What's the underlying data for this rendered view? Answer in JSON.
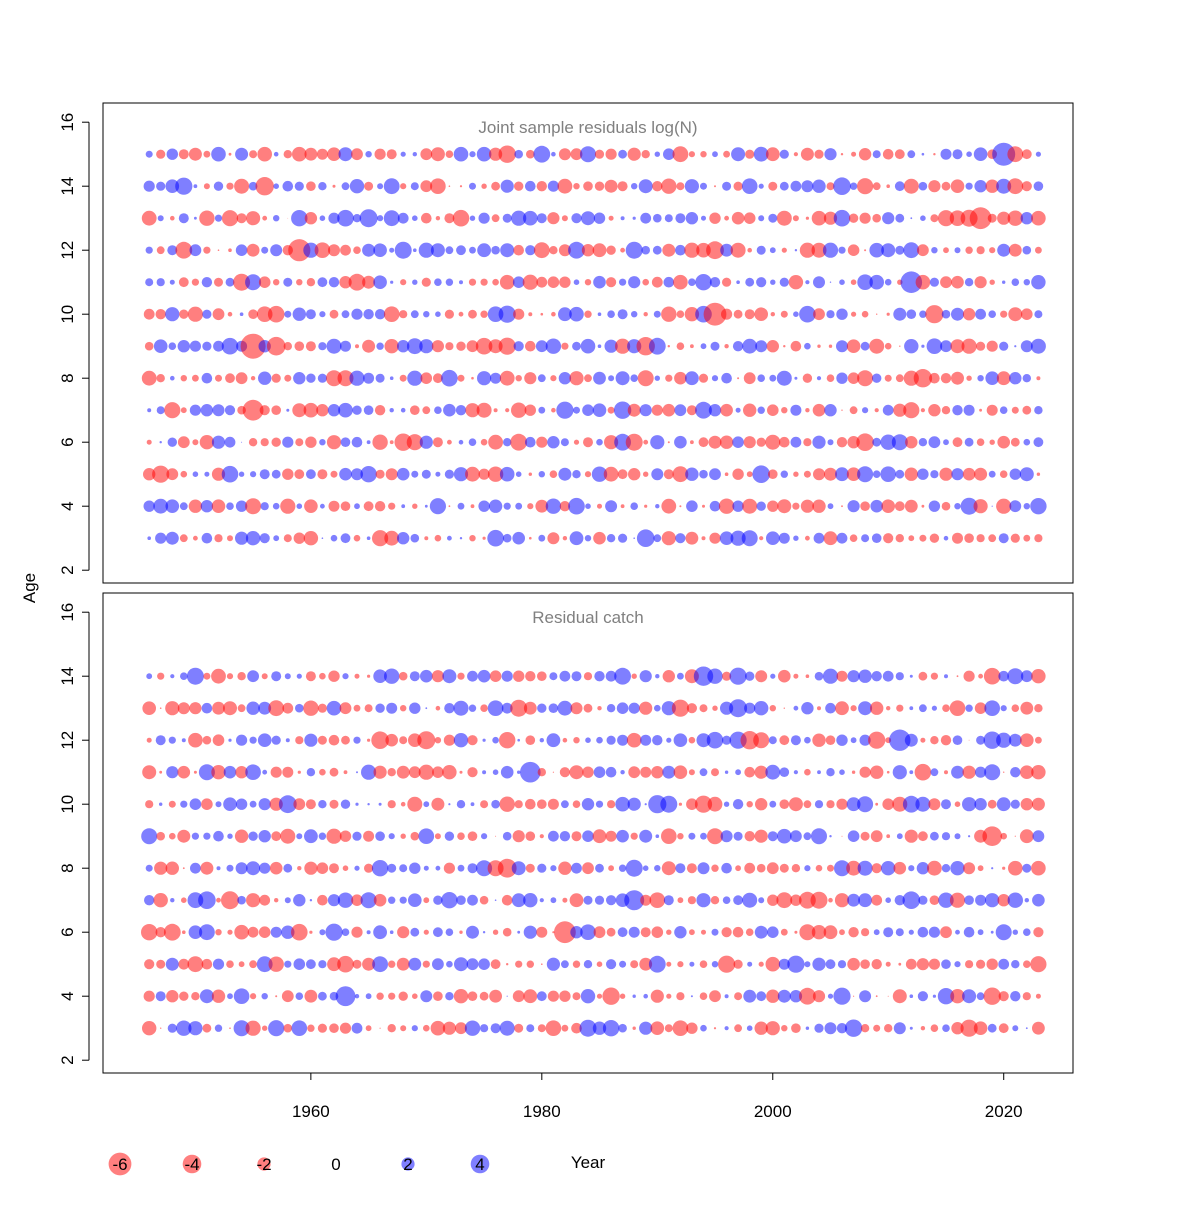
{
  "chart_data": {
    "type": "scatter",
    "subtype": "bubble",
    "ylabel": "Age",
    "xlabel": "Year",
    "x_ticks": [
      1960,
      1980,
      2000,
      2020
    ],
    "y_ticks": [
      2,
      4,
      6,
      8,
      10,
      12,
      14,
      16
    ],
    "xlim": [
      1942,
      2026
    ],
    "ylim": [
      1.6,
      16.6
    ],
    "colors": {
      "negative": "#ff0000",
      "positive": "#0000ff",
      "fill_opacity": 0.5,
      "frame": "#000000",
      "title": "#808080"
    },
    "panels": [
      {
        "title": "Joint sample residuals log(N)",
        "ages": [
          3,
          4,
          5,
          6,
          7,
          8,
          9,
          10,
          11,
          12,
          13,
          14,
          15
        ],
        "years": [
          1946,
          2023
        ],
        "seed": 11
      },
      {
        "title": "Residual catch",
        "ages": [
          3,
          4,
          5,
          6,
          7,
          8,
          9,
          10,
          11,
          12,
          13,
          14
        ],
        "years": [
          1946,
          2023
        ],
        "seed": 29
      }
    ],
    "legend": {
      "values": [
        -6,
        -4,
        -2,
        0,
        2,
        4
      ],
      "labels": [
        "-6",
        "-4",
        "-2",
        "0",
        "2",
        "4"
      ]
    }
  }
}
